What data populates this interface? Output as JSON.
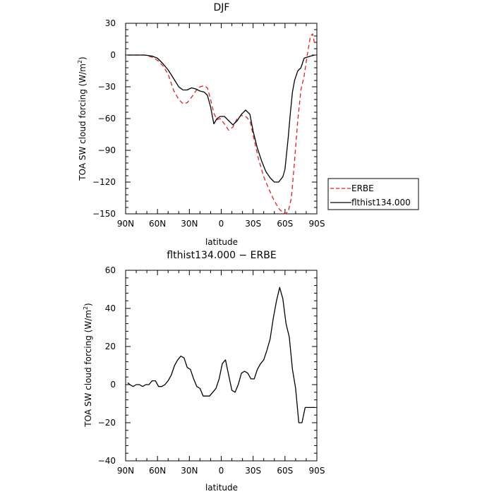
{
  "chart_data": [
    {
      "type": "line",
      "title": "DJF",
      "xlabel": "latitude",
      "ylabel_main": "TOA SW cloud forcing (W/m",
      "ylabel_sup": "2",
      "ylabel_tail": ")",
      "xlim": [
        90,
        -90
      ],
      "ylim": [
        -150,
        30
      ],
      "x_ticks": [
        90,
        60,
        30,
        0,
        -30,
        -60,
        -90
      ],
      "x_tick_labels": [
        "90N",
        "60N",
        "30N",
        "0",
        "30S",
        "60S",
        "90S"
      ],
      "y_ticks": [
        30,
        0,
        -30,
        -60,
        -90,
        -120,
        -150
      ],
      "y_tick_labels": [
        "30",
        "0",
        "−30",
        "−60",
        "−90",
        "−120",
        "−150"
      ],
      "legend_position": "right, outside",
      "series": [
        {
          "name": "ERBE",
          "color": "#e02020",
          "dash": "dashed",
          "x": [
            88,
            80,
            72,
            65,
            60,
            55,
            50,
            45,
            40,
            36,
            32,
            28,
            24,
            20,
            16,
            13,
            10,
            7,
            4,
            1,
            -3,
            -7,
            -11,
            -15,
            -19,
            -23,
            -27,
            -31,
            -35,
            -40,
            -45,
            -50,
            -55,
            -60,
            -63,
            -66,
            -69,
            -72,
            -75,
            -78,
            -81,
            -84,
            -86,
            -88
          ],
          "values": [
            0,
            0,
            0,
            -2,
            -5,
            -10,
            -18,
            -33,
            -42,
            -46,
            -45,
            -40,
            -34,
            -30,
            -29,
            -31,
            -42,
            -55,
            -61,
            -60,
            -65,
            -71,
            -68,
            -60,
            -57,
            -58,
            -62,
            -80,
            -98,
            -115,
            -127,
            -138,
            -146,
            -150,
            -148,
            -135,
            -100,
            -62,
            -33,
            -20,
            0,
            18,
            20,
            10
          ]
        },
        {
          "name": "flthist134.000",
          "color": "#000000",
          "dash": "solid",
          "x": [
            88,
            80,
            72,
            65,
            60,
            55,
            50,
            45,
            40,
            36,
            32,
            28,
            24,
            20,
            16,
            13,
            10,
            7,
            4,
            1,
            -3,
            -7,
            -11,
            -15,
            -19,
            -23,
            -27,
            -30,
            -34,
            -38,
            -42,
            -46,
            -50,
            -54,
            -58,
            -60,
            -63,
            -65,
            -67,
            -69,
            -72,
            -75,
            -78,
            -81,
            -84,
            -88
          ],
          "values": [
            0,
            0,
            0,
            -1,
            -3,
            -8,
            -14,
            -22,
            -30,
            -33,
            -33,
            -31,
            -32,
            -34,
            -35,
            -38,
            -49,
            -65,
            -60,
            -58,
            -58,
            -62,
            -66,
            -62,
            -56,
            -52,
            -56,
            -72,
            -88,
            -100,
            -110,
            -116,
            -120,
            -120,
            -115,
            -108,
            -78,
            -55,
            -35,
            -24,
            -15,
            -12,
            -3,
            -2,
            -1,
            0
          ]
        }
      ]
    },
    {
      "type": "line",
      "title": "flthist134.000 − ERBE",
      "xlabel": "latitude",
      "ylabel_main": "TOA SW cloud forcing (W/m",
      "ylabel_sup": "2",
      "ylabel_tail": ")",
      "xlim": [
        90,
        -90
      ],
      "ylim": [
        -40,
        60
      ],
      "x_ticks": [
        90,
        60,
        30,
        0,
        -30,
        -60,
        -90
      ],
      "x_tick_labels": [
        "90N",
        "60N",
        "30N",
        "0",
        "30S",
        "60S",
        "90S"
      ],
      "y_ticks": [
        60,
        40,
        20,
        0,
        -20,
        -40
      ],
      "y_tick_labels": [
        "60",
        "40",
        "20",
        "0",
        "−20",
        "−40"
      ],
      "series": [
        {
          "color": "#000000",
          "dash": "solid",
          "x": [
            88,
            86,
            83,
            80,
            77,
            74,
            71,
            68,
            65,
            62,
            59,
            56,
            53,
            50,
            47,
            44,
            41,
            38,
            35,
            32,
            29,
            26,
            23,
            20,
            17,
            14,
            11,
            8,
            5,
            2,
            -1,
            -4,
            -7,
            -10,
            -13,
            -16,
            -19,
            -22,
            -25,
            -28,
            -31,
            -34,
            -37,
            -40,
            -43,
            -46,
            -49,
            -52,
            -55,
            -58,
            -61,
            -64,
            -67,
            -70,
            -73,
            -76,
            -79,
            -82,
            -85,
            -88
          ],
          "values": [
            1,
            0,
            -1,
            0,
            0,
            -1,
            0,
            0,
            2,
            2,
            -1,
            -1,
            0,
            2,
            5,
            10,
            13,
            15,
            14,
            9,
            8,
            3,
            -1,
            -2,
            -6,
            -6,
            -6,
            -4,
            -2,
            3,
            11,
            13,
            5,
            -3,
            -4,
            0,
            6,
            7,
            6,
            3,
            3,
            8,
            11,
            13,
            18,
            24,
            35,
            44,
            51,
            45,
            32,
            25,
            8,
            -2,
            -20,
            -20,
            -12,
            -12,
            -12,
            -12
          ]
        }
      ]
    }
  ]
}
